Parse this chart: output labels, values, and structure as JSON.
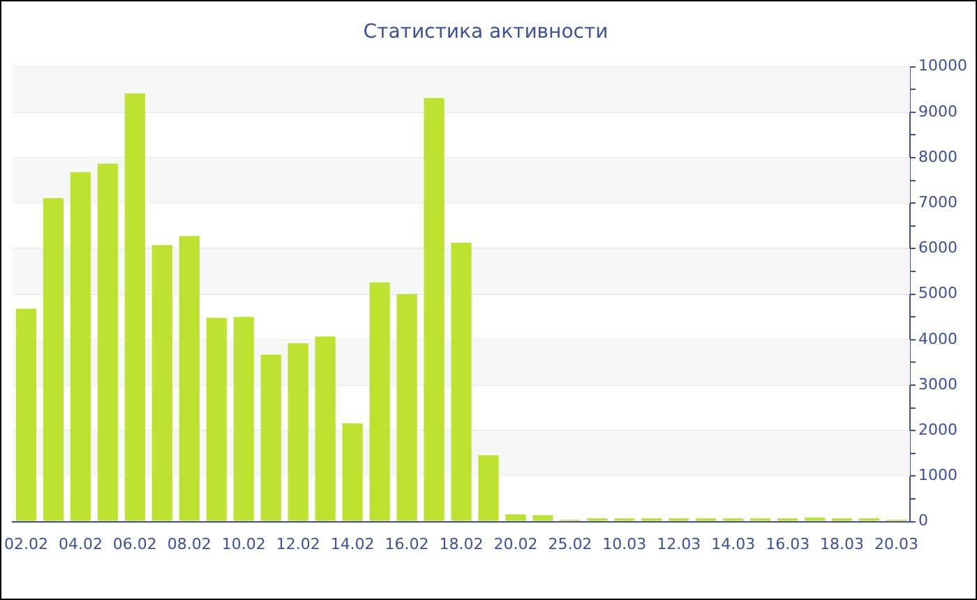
{
  "chart_data": {
    "type": "bar",
    "title": "Статистика активности",
    "categories": [
      "02.02",
      null,
      "04.02",
      null,
      "06.02",
      null,
      "08.02",
      null,
      "10.02",
      null,
      "12.02",
      null,
      "14.02",
      null,
      "16.02",
      null,
      "18.02",
      null,
      "20.02",
      null,
      "25.02",
      null,
      "10.03",
      null,
      "12.03",
      null,
      "14.03",
      null,
      "16.03",
      null,
      "18.03",
      null,
      "20.03"
    ],
    "values": [
      4680,
      7110,
      7680,
      7870,
      9410,
      6080,
      6280,
      4480,
      4500,
      3670,
      3920,
      4070,
      2160,
      5260,
      5000,
      9310,
      6130,
      1460,
      160,
      140,
      40,
      70,
      70,
      70,
      70,
      70,
      70,
      70,
      70,
      90,
      70,
      70,
      40
    ],
    "color": "#bde22f",
    "ylim": [
      0,
      10000
    ],
    "yticks": [
      0,
      {
        "value": 500,
        "label": null
      },
      1000,
      {
        "value": 1500,
        "label": null
      },
      2000,
      {
        "value": 2500,
        "label": null
      },
      3000,
      {
        "value": 3500,
        "label": null
      },
      4000,
      {
        "value": 4500,
        "label": null
      },
      5000,
      {
        "value": 5500,
        "label": null
      },
      6000,
      {
        "value": 6500,
        "label": null
      },
      7000,
      {
        "value": 7500,
        "label": null
      },
      8000,
      {
        "value": 8500,
        "label": null
      },
      9000,
      {
        "value": 9500,
        "label": null
      },
      10000
    ],
    "grid": "y"
  }
}
